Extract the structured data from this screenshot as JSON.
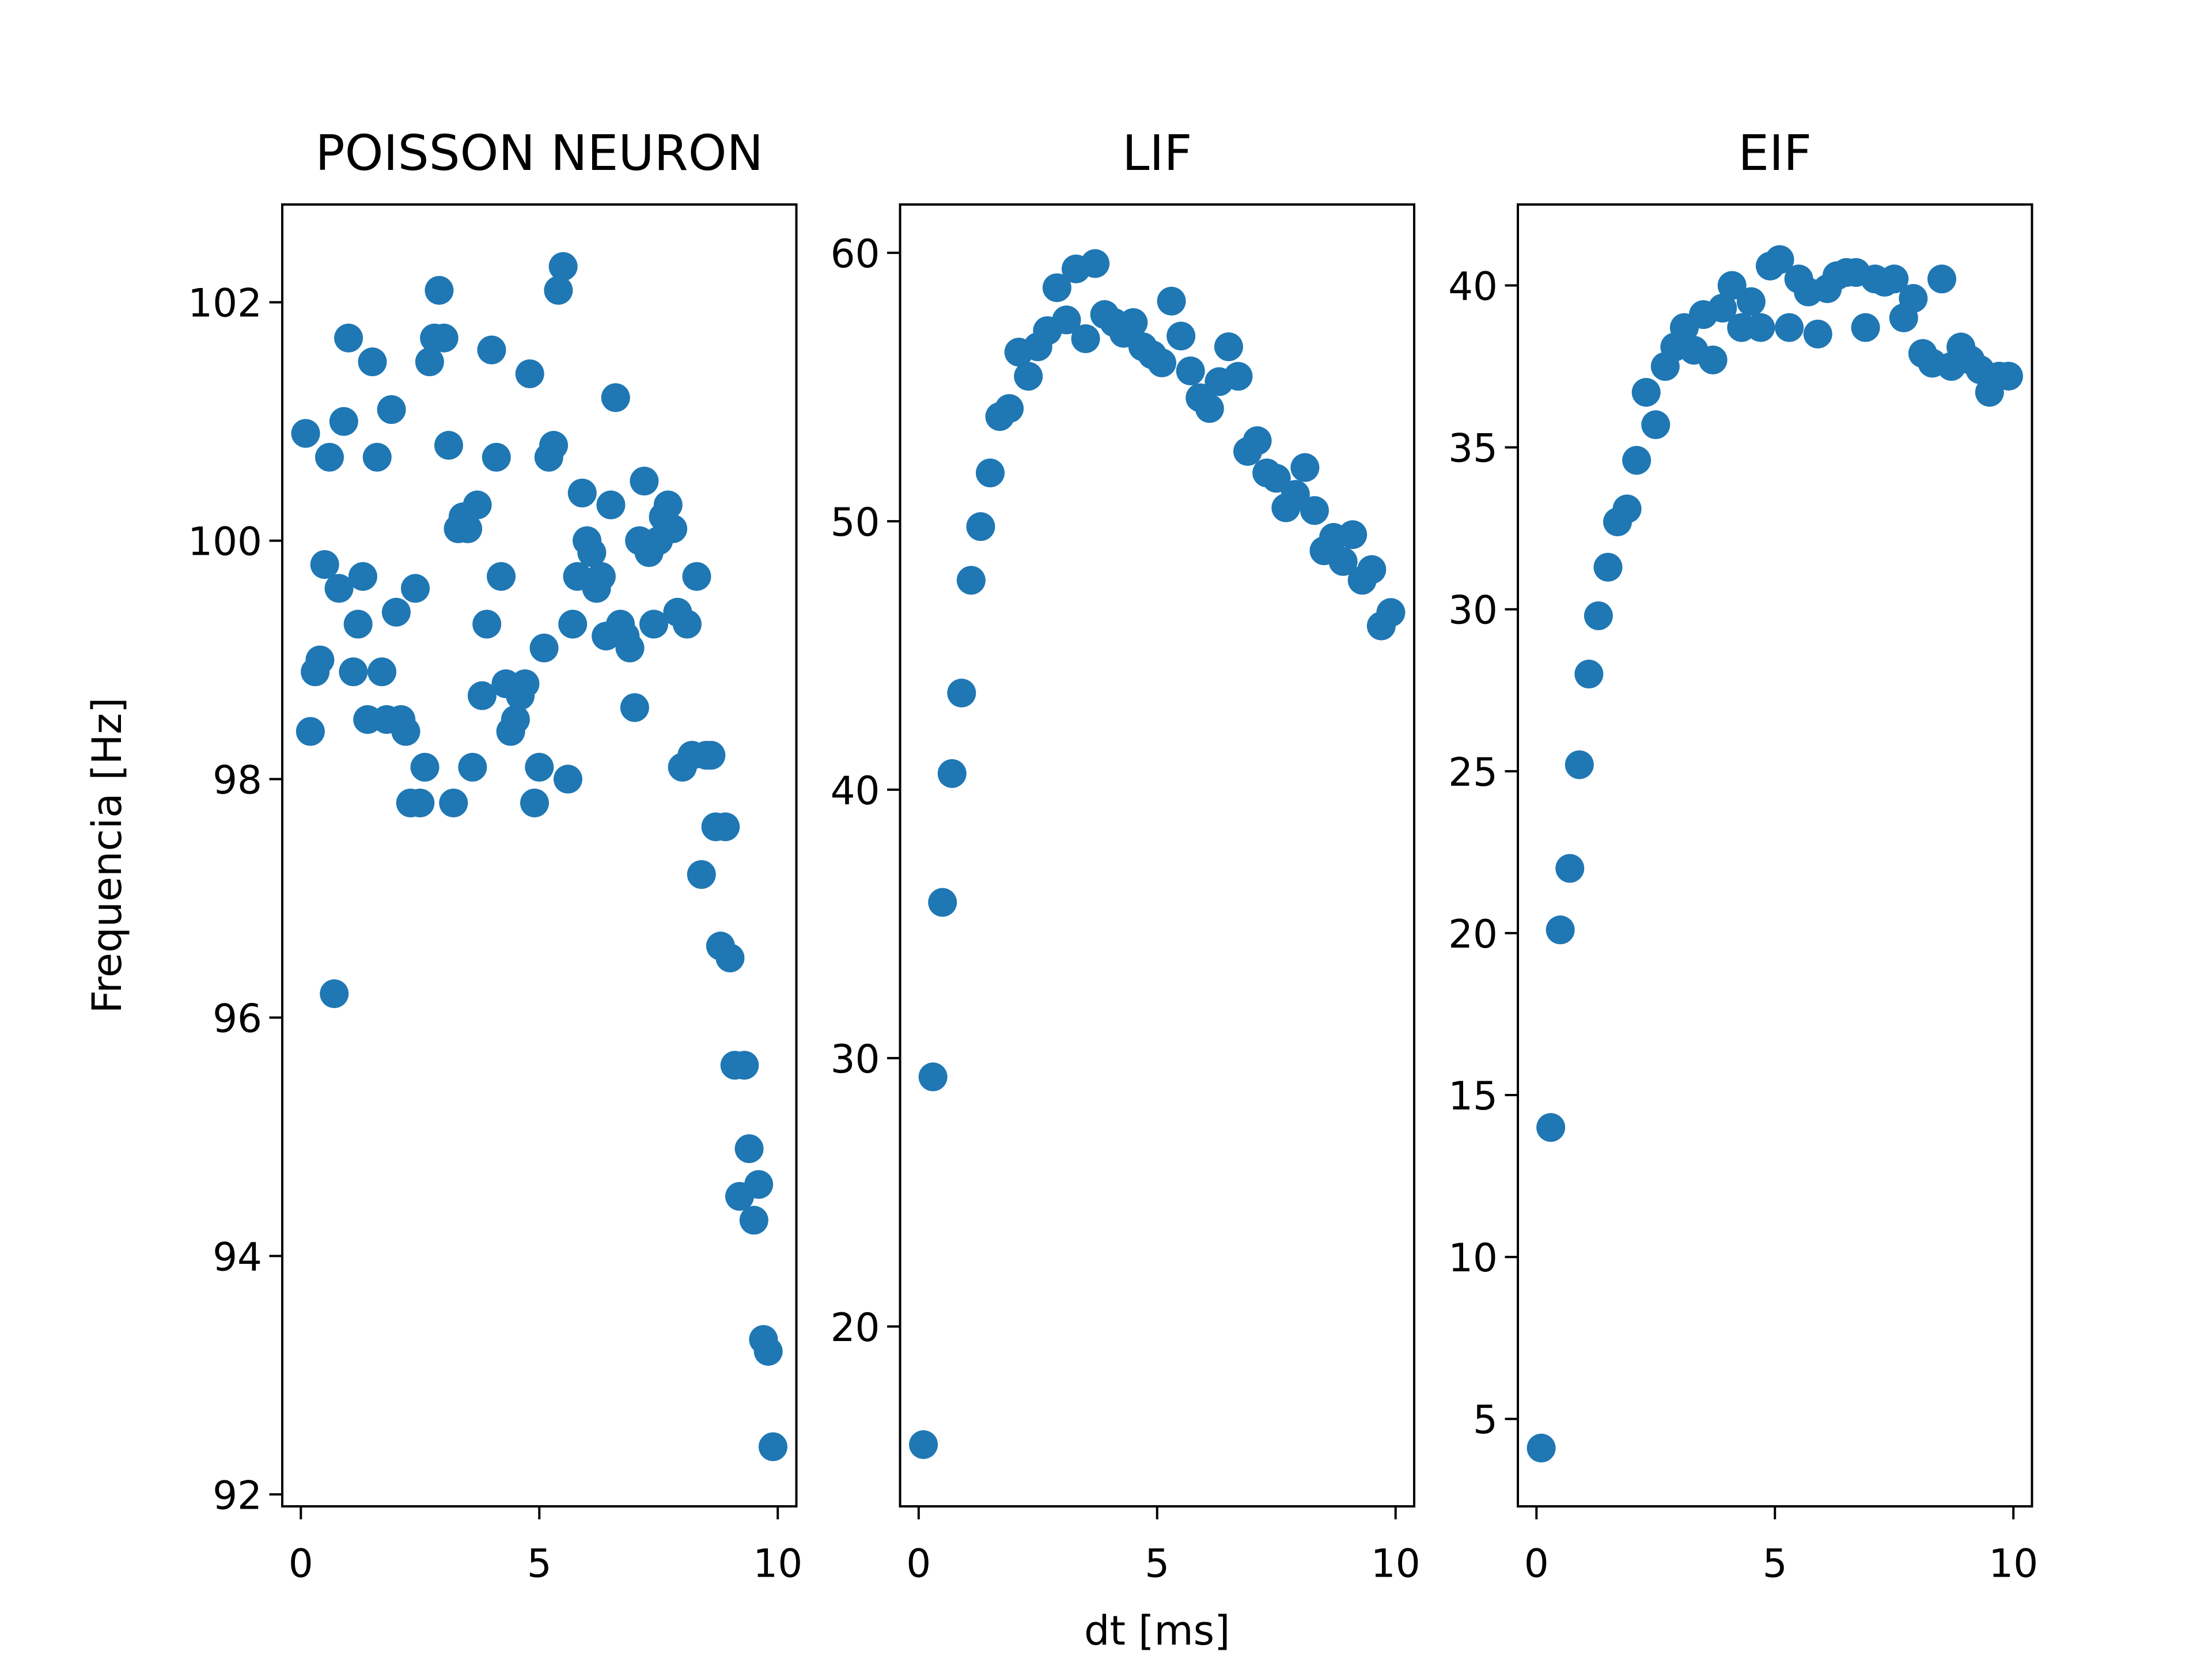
{
  "chart_data": [
    {
      "type": "scatter",
      "title": "POISSON NEURON",
      "ylabel": "Frequencia [Hz]",
      "color": "#1f77b4",
      "xlim": [
        -0.39,
        10.39
      ],
      "ylim": [
        91.9,
        102.82
      ],
      "xticks": [
        0,
        5,
        10
      ],
      "yticks": [
        92,
        94,
        96,
        98,
        100,
        102
      ],
      "x": [
        0.1,
        0.2,
        0.3,
        0.4,
        0.5,
        0.6,
        0.7,
        0.8,
        0.9,
        1.0,
        1.1,
        1.2,
        1.3,
        1.4,
        1.5,
        1.6,
        1.7,
        1.8,
        1.9,
        2.0,
        2.1,
        2.2,
        2.3,
        2.4,
        2.5,
        2.6,
        2.7,
        2.8,
        2.9,
        3.0,
        3.1,
        3.2,
        3.3,
        3.4,
        3.5,
        3.6,
        3.7,
        3.8,
        3.9,
        4.0,
        4.1,
        4.2,
        4.3,
        4.4,
        4.5,
        4.6,
        4.7,
        4.8,
        4.9,
        5.0,
        5.1,
        5.2,
        5.3,
        5.4,
        5.5,
        5.6,
        5.7,
        5.8,
        5.9,
        6.0,
        6.1,
        6.2,
        6.3,
        6.4,
        6.5,
        6.6,
        6.7,
        6.8,
        6.9,
        7.0,
        7.1,
        7.2,
        7.3,
        7.4,
        7.5,
        7.6,
        7.7,
        7.8,
        7.9,
        8.0,
        8.1,
        8.2,
        8.3,
        8.4,
        8.5,
        8.6,
        8.7,
        8.8,
        8.9,
        9.0,
        9.1,
        9.2,
        9.3,
        9.4,
        9.5,
        9.6,
        9.7,
        9.8,
        9.9
      ],
      "values": [
        100.9,
        98.4,
        98.9,
        99.0,
        99.8,
        100.7,
        96.2,
        99.6,
        101.0,
        101.7,
        98.9,
        99.3,
        99.7,
        98.5,
        101.5,
        100.7,
        98.9,
        98.5,
        101.1,
        99.4,
        98.5,
        98.4,
        97.8,
        99.6,
        97.8,
        98.1,
        101.5,
        101.7,
        102.1,
        101.7,
        100.8,
        97.8,
        100.1,
        100.2,
        100.1,
        98.1,
        100.3,
        98.7,
        99.3,
        101.6,
        100.7,
        99.7,
        98.8,
        98.4,
        98.5,
        98.7,
        98.8,
        101.4,
        97.8,
        98.1,
        99.1,
        100.7,
        100.8,
        102.1,
        102.3,
        98.0,
        99.3,
        99.7,
        100.4,
        100.0,
        99.9,
        99.6,
        99.7,
        99.2,
        100.3,
        101.2,
        99.3,
        99.2,
        99.1,
        98.6,
        100.0,
        100.5,
        99.9,
        99.3,
        100.0,
        100.2,
        100.3,
        100.1,
        99.4,
        98.1,
        99.3,
        98.2,
        99.7,
        97.2,
        98.2,
        98.2,
        97.6,
        96.6,
        97.6,
        96.5,
        95.6,
        94.5,
        95.6,
        94.9,
        94.3,
        94.6,
        93.3,
        93.2,
        92.4
      ]
    },
    {
      "type": "scatter",
      "title": "LIF",
      "xlabel": "dt [ms]",
      "color": "#1f77b4",
      "xlim": [
        -0.39,
        10.39
      ],
      "ylim": [
        13.3,
        61.8
      ],
      "xticks": [
        0,
        5,
        10
      ],
      "yticks": [
        20,
        30,
        40,
        50,
        60
      ],
      "x": [
        0.1,
        0.3,
        0.5,
        0.7,
        0.9,
        1.1,
        1.3,
        1.5,
        1.7,
        1.9,
        2.1,
        2.3,
        2.5,
        2.7,
        2.9,
        3.1,
        3.3,
        3.5,
        3.7,
        3.9,
        4.1,
        4.3,
        4.5,
        4.7,
        4.9,
        5.1,
        5.3,
        5.5,
        5.7,
        5.9,
        6.1,
        6.3,
        6.5,
        6.7,
        6.9,
        7.1,
        7.3,
        7.5,
        7.7,
        7.9,
        8.1,
        8.3,
        8.5,
        8.7,
        8.9,
        9.1,
        9.3,
        9.5,
        9.7,
        9.9
      ],
      "values": [
        15.6,
        29.3,
        35.8,
        40.6,
        43.6,
        47.8,
        49.8,
        51.8,
        53.9,
        54.2,
        56.3,
        55.4,
        56.5,
        57.1,
        58.7,
        57.5,
        59.4,
        56.8,
        59.6,
        57.7,
        57.4,
        57.0,
        57.4,
        56.5,
        56.2,
        55.9,
        58.2,
        56.9,
        55.6,
        54.6,
        54.2,
        55.2,
        56.5,
        55.4,
        52.6,
        53.0,
        51.8,
        51.6,
        50.5,
        51.0,
        52.0,
        50.4,
        48.9,
        49.4,
        48.5,
        49.5,
        47.8,
        48.2,
        46.1,
        46.6
      ]
    },
    {
      "type": "scatter",
      "title": "EIF",
      "color": "#1f77b4",
      "xlim": [
        -0.39,
        10.39
      ],
      "ylim": [
        2.3,
        42.5
      ],
      "xticks": [
        0,
        5,
        10
      ],
      "yticks": [
        5,
        10,
        15,
        20,
        25,
        30,
        35,
        40
      ],
      "x": [
        0.1,
        0.3,
        0.5,
        0.7,
        0.9,
        1.1,
        1.3,
        1.5,
        1.7,
        1.9,
        2.1,
        2.3,
        2.5,
        2.7,
        2.9,
        3.1,
        3.3,
        3.5,
        3.7,
        3.9,
        4.1,
        4.3,
        4.5,
        4.7,
        4.9,
        5.1,
        5.3,
        5.5,
        5.7,
        5.9,
        6.1,
        6.3,
        6.5,
        6.7,
        6.9,
        7.1,
        7.3,
        7.5,
        7.7,
        7.9,
        8.1,
        8.3,
        8.5,
        8.7,
        8.9,
        9.1,
        9.3,
        9.5,
        9.7,
        9.9
      ],
      "values": [
        4.1,
        14.0,
        20.1,
        22.0,
        25.2,
        28.0,
        29.8,
        31.3,
        32.7,
        33.1,
        34.6,
        36.7,
        35.7,
        37.5,
        38.1,
        38.7,
        38.0,
        39.1,
        37.7,
        39.3,
        40.0,
        38.7,
        39.5,
        38.7,
        40.6,
        40.8,
        38.7,
        40.2,
        39.8,
        38.5,
        39.9,
        40.3,
        40.4,
        40.4,
        38.7,
        40.2,
        40.1,
        40.2,
        39.0,
        39.6,
        37.9,
        37.6,
        40.2,
        37.5,
        38.1,
        37.7,
        37.4,
        36.7,
        37.2,
        37.2
      ]
    }
  ]
}
